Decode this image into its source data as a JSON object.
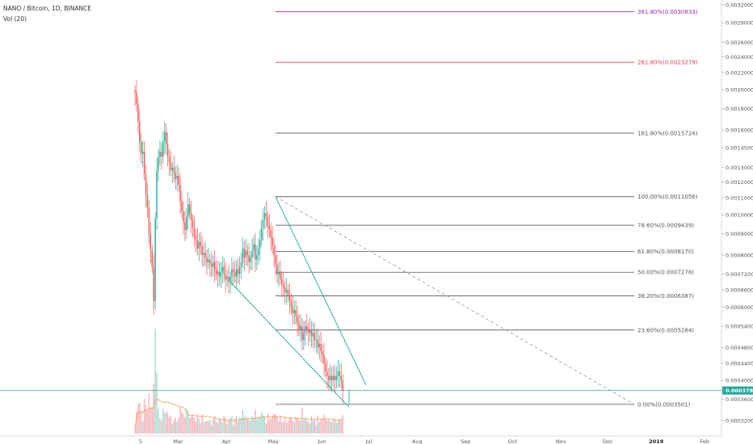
{
  "header": {
    "symbol_line": "NANO / Bitcoin, 1D, BINANCE",
    "volume_label": "Vol (20)"
  },
  "colors": {
    "up": "#26a69a",
    "down": "#ef5350",
    "volume_up": "#a8d8cf",
    "volume_down": "#f2b3b9",
    "volume_ma": "#f0a14f",
    "trendline": "#2db3a0",
    "projection": "#b39ab8",
    "price_line": "#26a69a",
    "fib_extension_3618": "#9c27b0",
    "fib_extension_2618": "#e53950",
    "fib_levels": "#555555",
    "price_tag_bg": "#26a69a"
  },
  "chart_data": {
    "type": "candlestick",
    "symbol": "NANO / Bitcoin",
    "interval": "1D",
    "exchange": "BINANCE",
    "y_scale": "log",
    "ylim": [
      0.00032,
      0.00032833
    ],
    "x_tick_labels": [
      "5",
      "Mar",
      "Apr",
      "May",
      "Jun",
      "Jul",
      "Aug",
      "Sep",
      "Oct",
      "Nov",
      "Dec",
      "2019",
      "Feb"
    ],
    "y_tick_labels": [
      "0.0032000",
      "0.0029000",
      "0.0026000",
      "0.0024000",
      "0.0022000",
      "0.0020000",
      "0.0018000",
      "0.0016000",
      "0.0014500",
      "0.0013000",
      "0.0012000",
      "0.0011000",
      "0.0010000",
      "0.0009000",
      "0.0008000",
      "0.0007200",
      "0.0006600",
      "0.0006000",
      "0.0005400",
      "0.0004800",
      "0.0004400",
      "0.0004000",
      "0.0003600",
      "0.0003200"
    ],
    "current_price": "0.0003780",
    "fib_levels": [
      {
        "label": "361.80%(0.0030833)",
        "value": 0.0030833
      },
      {
        "label": "261.80%(0.0023279)",
        "value": 0.0023279
      },
      {
        "label": "161.80%(0.0015724)",
        "value": 0.0015724
      },
      {
        "label": "100.00%(0.0011056)",
        "value": 0.0011056
      },
      {
        "label": "78.60%(0.0009439)",
        "value": 0.0009439
      },
      {
        "label": "61.80%(0.0008170)",
        "value": 0.000817
      },
      {
        "label": "50.00%(0.0007278)",
        "value": 0.0007278
      },
      {
        "label": "38.20%(0.0006387)",
        "value": 0.0006387
      },
      {
        "label": "23.60%(0.0005284)",
        "value": 0.0005284
      },
      {
        "label": "0.00%(0.0003501)",
        "value": 0.0003501
      }
    ],
    "series": [
      {
        "kind": "close",
        "points": [
          [
            "Feb 5",
            0.00197
          ],
          [
            "Feb 6",
            0.00185
          ],
          [
            "Feb 7",
            0.00168
          ],
          [
            "Feb 8",
            0.0015
          ],
          [
            "Feb 9",
            0.0014
          ],
          [
            "Feb 10",
            0.00142
          ],
          [
            "Feb 11",
            0.00125
          ],
          [
            "Feb 12",
            0.00112
          ],
          [
            "Feb 13",
            0.00104
          ],
          [
            "Feb 14",
            0.0009
          ],
          [
            "Feb 15",
            0.00082
          ],
          [
            "Feb 16",
            0.00075
          ],
          [
            "Feb 17",
            0.00062
          ],
          [
            "Feb 18",
            0.00098
          ],
          [
            "Feb 19",
            0.00128
          ],
          [
            "Feb 20",
            0.00138
          ],
          [
            "Feb 21",
            0.00142
          ],
          [
            "Feb 22",
            0.00138
          ],
          [
            "Feb 23",
            0.0015
          ],
          [
            "Feb 24",
            0.00158
          ],
          [
            "Feb 25",
            0.00148
          ],
          [
            "Feb 26",
            0.00138
          ],
          [
            "Feb 27",
            0.00133
          ],
          [
            "Feb 28",
            0.00128
          ],
          [
            "Mar 1",
            0.0013
          ],
          [
            "Mar 2",
            0.00126
          ],
          [
            "Mar 3",
            0.00122
          ],
          [
            "Mar 4",
            0.00124
          ],
          [
            "Mar 5",
            0.00118
          ],
          [
            "Mar 6",
            0.00108
          ],
          [
            "Mar 7",
            0.00102
          ],
          [
            "Mar 8",
            0.00096
          ],
          [
            "Mar 9",
            0.00092
          ],
          [
            "Mar 10",
            0.00099
          ],
          [
            "Mar 11",
            0.00106
          ],
          [
            "Mar 12",
            0.00101
          ],
          [
            "Mar 13",
            0.00097
          ],
          [
            "Mar 14",
            0.00093
          ],
          [
            "Mar 15",
            0.00089
          ],
          [
            "Mar 16",
            0.00087
          ],
          [
            "Mar 17",
            0.00083
          ],
          [
            "Mar 18",
            0.00086
          ],
          [
            "Mar 19",
            0.00084
          ],
          [
            "Mar 20",
            0.0008
          ],
          [
            "Mar 21",
            0.00081
          ],
          [
            "Mar 22",
            0.00079
          ],
          [
            "Mar 23",
            0.00077
          ],
          [
            "Mar 24",
            0.00078
          ],
          [
            "Mar 25",
            0.00076
          ],
          [
            "Mar 26",
            0.00075
          ],
          [
            "Mar 27",
            0.00077
          ],
          [
            "Mar 28",
            0.00074
          ],
          [
            "Mar 29",
            0.00072
          ],
          [
            "Mar 30",
            0.00073
          ],
          [
            "Mar 31",
            0.00071
          ],
          [
            "Apr 1",
            0.00073
          ],
          [
            "Apr 2",
            0.00075
          ],
          [
            "Apr 3",
            0.00072
          ],
          [
            "Apr 4",
            0.0007
          ],
          [
            "Apr 5",
            0.00071
          ],
          [
            "Apr 6",
            0.00069
          ],
          [
            "Apr 7",
            0.00071
          ],
          [
            "Apr 8",
            0.00074
          ],
          [
            "Apr 9",
            0.00073
          ],
          [
            "Apr 10",
            0.00071
          ],
          [
            "Apr 11",
            0.00074
          ],
          [
            "Apr 12",
            0.00072
          ],
          [
            "Apr 13",
            0.00075
          ],
          [
            "Apr 14",
            0.00077
          ],
          [
            "Apr 15",
            0.00083
          ],
          [
            "Apr 16",
            0.00079
          ],
          [
            "Apr 17",
            0.00082
          ],
          [
            "Apr 18",
            0.0008
          ],
          [
            "Apr 19",
            0.00077
          ],
          [
            "Apr 20",
            0.00079
          ],
          [
            "Apr 21",
            0.00082
          ],
          [
            "Apr 22",
            0.00085
          ],
          [
            "Apr 23",
            0.00078
          ],
          [
            "Apr 24",
            0.0008
          ],
          [
            "Apr 25",
            0.00083
          ],
          [
            "Apr 26",
            0.00087
          ],
          [
            "Apr 27",
            0.00093
          ],
          [
            "Apr 28",
            0.00097
          ],
          [
            "Apr 29",
            0.00101
          ],
          [
            "Apr 30",
            0.00099
          ],
          [
            "May 1",
            0.00094
          ],
          [
            "May 2",
            0.00092
          ],
          [
            "May 3",
            0.00088
          ],
          [
            "May 4",
            0.00084
          ],
          [
            "May 5",
            0.0008
          ],
          [
            "May 6",
            0.00076
          ],
          [
            "May 7",
            0.00072
          ],
          [
            "May 8",
            0.00073
          ],
          [
            "May 9",
            0.0007
          ],
          [
            "May 10",
            0.00068
          ],
          [
            "May 11",
            0.00067
          ],
          [
            "May 12",
            0.00065
          ],
          [
            "May 13",
            0.00066
          ],
          [
            "May 14",
            0.00064
          ],
          [
            "May 15",
            0.00062
          ],
          [
            "May 16",
            0.0006
          ],
          [
            "May 17",
            0.00058
          ],
          [
            "May 18",
            0.00059
          ],
          [
            "May 19",
            0.00057
          ],
          [
            "May 20",
            0.00055
          ],
          [
            "May 21",
            0.00053
          ],
          [
            "May 22",
            0.00054
          ],
          [
            "May 23",
            0.0005
          ],
          [
            "May 24",
            0.00052
          ],
          [
            "May 25",
            0.00054
          ],
          [
            "May 26",
            0.00053
          ],
          [
            "May 27",
            0.00052
          ],
          [
            "May 28",
            0.00053
          ],
          [
            "May 29",
            0.00051
          ],
          [
            "May 30",
            0.00052
          ],
          [
            "May 31",
            0.0005
          ],
          [
            "Jun 1",
            0.0005
          ],
          [
            "Jun 2",
            0.00048
          ],
          [
            "Jun 3",
            0.00049
          ],
          [
            "Jun 4",
            0.00047
          ],
          [
            "Jun 5",
            0.00046
          ],
          [
            "Jun 6",
            0.00044
          ],
          [
            "Jun 7",
            0.00042
          ],
          [
            "Jun 8",
            0.00041
          ],
          [
            "Jun 9",
            0.0004
          ],
          [
            "Jun 10",
            0.00041
          ],
          [
            "Jun 11",
            0.0004
          ],
          [
            "Jun 12",
            0.00041
          ],
          [
            "Jun 13",
            0.0004
          ],
          [
            "Jun 14",
            0.00041
          ],
          [
            "Jun 15",
            0.00042
          ],
          [
            "Jun 16",
            0.00041
          ],
          [
            "Jun 17",
            0.0004
          ],
          [
            "Jun 18",
            0.000378
          ]
        ]
      }
    ]
  }
}
